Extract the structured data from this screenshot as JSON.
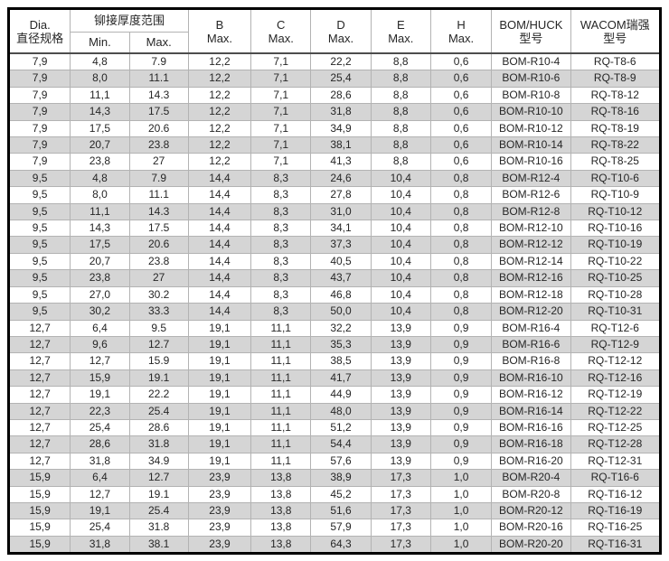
{
  "colors": {
    "stripe": "#d5d5d5",
    "grid": "#b3b3b3",
    "outer_border": "#000000",
    "header_rule": "#4d4d4d",
    "text": "#262626"
  },
  "header": {
    "dia": {
      "line1": "Dia.",
      "line2": "直径规格"
    },
    "range_group": "铆接厚度范围",
    "min": "Min.",
    "max": "Max.",
    "b": {
      "line1": "B",
      "line2": "Max."
    },
    "c": {
      "line1": "C",
      "line2": "Max."
    },
    "d": {
      "line1": "D",
      "line2": "Max."
    },
    "e": {
      "line1": "E",
      "line2": "Max."
    },
    "h": {
      "line1": "H",
      "line2": "Max."
    },
    "bom": {
      "line1": "BOM/HUCK",
      "line2": "型号"
    },
    "wacom": {
      "line1": "WACOM瑞强",
      "line2": "型号"
    }
  },
  "rows": [
    [
      "7,9",
      "4,8",
      "7.9",
      "12,2",
      "7,1",
      "22,2",
      "8,8",
      "0,6",
      "BOM-R10-4",
      "RQ-T8-6"
    ],
    [
      "7,9",
      "8,0",
      "11.1",
      "12,2",
      "7,1",
      "25,4",
      "8,8",
      "0,6",
      "BOM-R10-6",
      "RQ-T8-9"
    ],
    [
      "7,9",
      "11,1",
      "14.3",
      "12,2",
      "7,1",
      "28,6",
      "8,8",
      "0,6",
      "BOM-R10-8",
      "RQ-T8-12"
    ],
    [
      "7,9",
      "14,3",
      "17.5",
      "12,2",
      "7,1",
      "31,8",
      "8,8",
      "0,6",
      "BOM-R10-10",
      "RQ-T8-16"
    ],
    [
      "7,9",
      "17,5",
      "20.6",
      "12,2",
      "7,1",
      "34,9",
      "8,8",
      "0,6",
      "BOM-R10-12",
      "RQ-T8-19"
    ],
    [
      "7,9",
      "20,7",
      "23.8",
      "12,2",
      "7,1",
      "38,1",
      "8,8",
      "0,6",
      "BOM-R10-14",
      "RQ-T8-22"
    ],
    [
      "7,9",
      "23,8",
      "27",
      "12,2",
      "7,1",
      "41,3",
      "8,8",
      "0,6",
      "BOM-R10-16",
      "RQ-T8-25"
    ],
    [
      "9,5",
      "4,8",
      "7.9",
      "14,4",
      "8,3",
      "24,6",
      "10,4",
      "0,8",
      "BOM-R12-4",
      "RQ-T10-6"
    ],
    [
      "9,5",
      "8,0",
      "11.1",
      "14,4",
      "8,3",
      "27,8",
      "10,4",
      "0,8",
      "BOM-R12-6",
      "RQ-T10-9"
    ],
    [
      "9,5",
      "11,1",
      "14.3",
      "14,4",
      "8,3",
      "31,0",
      "10,4",
      "0,8",
      "BOM-R12-8",
      "RQ-T10-12"
    ],
    [
      "9,5",
      "14,3",
      "17.5",
      "14,4",
      "8,3",
      "34,1",
      "10,4",
      "0,8",
      "BOM-R12-10",
      "RQ-T10-16"
    ],
    [
      "9,5",
      "17,5",
      "20.6",
      "14,4",
      "8,3",
      "37,3",
      "10,4",
      "0,8",
      "BOM-R12-12",
      "RQ-T10-19"
    ],
    [
      "9,5",
      "20,7",
      "23.8",
      "14,4",
      "8,3",
      "40,5",
      "10,4",
      "0,8",
      "BOM-R12-14",
      "RQ-T10-22"
    ],
    [
      "9,5",
      "23,8",
      "27",
      "14,4",
      "8,3",
      "43,7",
      "10,4",
      "0,8",
      "BOM-R12-16",
      "RQ-T10-25"
    ],
    [
      "9,5",
      "27,0",
      "30.2",
      "14,4",
      "8,3",
      "46,8",
      "10,4",
      "0,8",
      "BOM-R12-18",
      "RQ-T10-28"
    ],
    [
      "9,5",
      "30,2",
      "33.3",
      "14,4",
      "8,3",
      "50,0",
      "10,4",
      "0,8",
      "BOM-R12-20",
      "RQ-T10-31"
    ],
    [
      "12,7",
      "6,4",
      "9.5",
      "19,1",
      "11,1",
      "32,2",
      "13,9",
      "0,9",
      "BOM-R16-4",
      "RQ-T12-6"
    ],
    [
      "12,7",
      "9,6",
      "12.7",
      "19,1",
      "11,1",
      "35,3",
      "13,9",
      "0,9",
      "BOM-R16-6",
      "RQ-T12-9"
    ],
    [
      "12,7",
      "12,7",
      "15.9",
      "19,1",
      "11,1",
      "38,5",
      "13,9",
      "0,9",
      "BOM-R16-8",
      "RQ-T12-12"
    ],
    [
      "12,7",
      "15,9",
      "19.1",
      "19,1",
      "11,1",
      "41,7",
      "13,9",
      "0,9",
      "BOM-R16-10",
      "RQ-T12-16"
    ],
    [
      "12,7",
      "19,1",
      "22.2",
      "19,1",
      "11,1",
      "44,9",
      "13,9",
      "0,9",
      "BOM-R16-12",
      "RQ-T12-19"
    ],
    [
      "12,7",
      "22,3",
      "25.4",
      "19,1",
      "11,1",
      "48,0",
      "13,9",
      "0,9",
      "BOM-R16-14",
      "RQ-T12-22"
    ],
    [
      "12,7",
      "25,4",
      "28.6",
      "19,1",
      "11,1",
      "51,2",
      "13,9",
      "0,9",
      "BOM-R16-16",
      "RQ-T12-25"
    ],
    [
      "12,7",
      "28,6",
      "31.8",
      "19,1",
      "11,1",
      "54,4",
      "13,9",
      "0,9",
      "BOM-R16-18",
      "RQ-T12-28"
    ],
    [
      "12,7",
      "31,8",
      "34.9",
      "19,1",
      "11,1",
      "57,6",
      "13,9",
      "0,9",
      "BOM-R16-20",
      "RQ-T12-31"
    ],
    [
      "15,9",
      "6,4",
      "12.7",
      "23,9",
      "13,8",
      "38,9",
      "17,3",
      "1,0",
      "BOM-R20-4",
      "RQ-T16-6"
    ],
    [
      "15,9",
      "12,7",
      "19.1",
      "23,9",
      "13,8",
      "45,2",
      "17,3",
      "1,0",
      "BOM-R20-8",
      "RQ-T16-12"
    ],
    [
      "15,9",
      "19,1",
      "25.4",
      "23,9",
      "13,8",
      "51,6",
      "17,3",
      "1,0",
      "BOM-R20-12",
      "RQ-T16-19"
    ],
    [
      "15,9",
      "25,4",
      "31.8",
      "23,9",
      "13,8",
      "57,9",
      "17,3",
      "1,0",
      "BOM-R20-16",
      "RQ-T16-25"
    ],
    [
      "15,9",
      "31,8",
      "38.1",
      "23,9",
      "13,8",
      "64,3",
      "17,3",
      "1,0",
      "BOM-R20-20",
      "RQ-T16-31"
    ]
  ]
}
